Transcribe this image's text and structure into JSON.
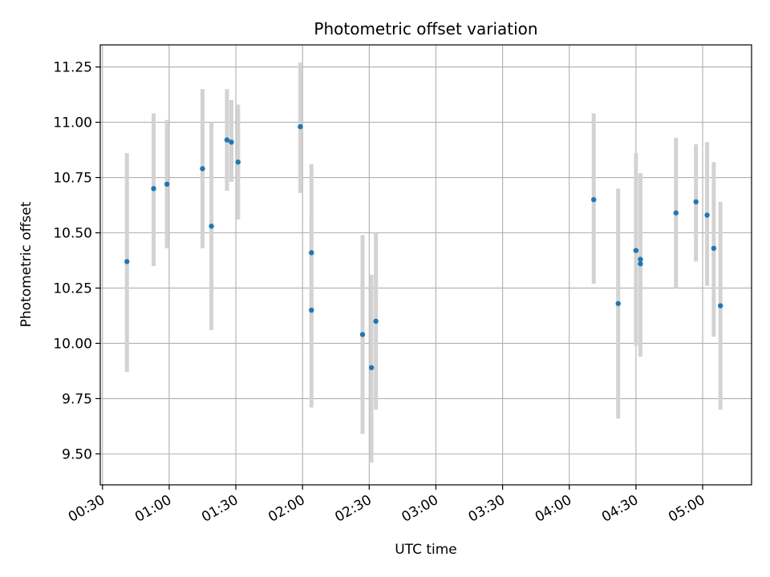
{
  "chart_data": {
    "type": "scatter",
    "title": "Photometric offset variation",
    "xlabel": "UTC time",
    "ylabel": "Photometric offset",
    "x_ticks": [
      "00:30",
      "01:00",
      "01:30",
      "02:00",
      "02:30",
      "03:00",
      "03:30",
      "04:00",
      "04:30",
      "05:00"
    ],
    "y_ticks": [
      "9.50",
      "9.75",
      "10.00",
      "10.25",
      "10.50",
      "10.75",
      "11.00",
      "11.25"
    ],
    "xlim": [
      "00:29",
      "05:22"
    ],
    "ylim": [
      9.36,
      11.35
    ],
    "grid": true,
    "colors": {
      "point": "#1f77b4",
      "errorbar": "#d3d3d3",
      "grid": "#b0b0b0"
    },
    "series": [
      {
        "points": [
          {
            "x": "00:41",
            "y": 10.37,
            "low": 9.87,
            "high": 10.86
          },
          {
            "x": "00:53",
            "y": 10.7,
            "low": 10.35,
            "high": 11.04
          },
          {
            "x": "00:59",
            "y": 10.72,
            "low": 10.43,
            "high": 11.01
          },
          {
            "x": "01:15",
            "y": 10.79,
            "low": 10.43,
            "high": 11.15
          },
          {
            "x": "01:19",
            "y": 10.53,
            "low": 10.06,
            "high": 11.0
          },
          {
            "x": "01:26",
            "y": 10.92,
            "low": 10.69,
            "high": 11.15
          },
          {
            "x": "01:28",
            "y": 10.91,
            "low": 10.73,
            "high": 11.1
          },
          {
            "x": "01:31",
            "y": 10.82,
            "low": 10.56,
            "high": 11.08
          },
          {
            "x": "01:59",
            "y": 10.98,
            "low": 10.68,
            "high": 11.27
          },
          {
            "x": "02:04",
            "y": 10.15,
            "low": 9.71,
            "high": 10.58
          },
          {
            "x": "02:04",
            "y": 10.41,
            "low": 10.02,
            "high": 10.81
          },
          {
            "x": "02:27",
            "y": 10.04,
            "low": 9.59,
            "high": 10.49
          },
          {
            "x": "02:31",
            "y": 9.89,
            "low": 9.46,
            "high": 10.31
          },
          {
            "x": "02:33",
            "y": 10.1,
            "low": 9.7,
            "high": 10.5
          },
          {
            "x": "04:11",
            "y": 10.65,
            "low": 10.27,
            "high": 11.04
          },
          {
            "x": "04:22",
            "y": 10.18,
            "low": 9.66,
            "high": 10.7
          },
          {
            "x": "04:30",
            "y": 10.42,
            "low": 9.99,
            "high": 10.86
          },
          {
            "x": "04:32",
            "y": 10.36,
            "low": 9.97,
            "high": 10.77
          },
          {
            "x": "04:32",
            "y": 10.38,
            "low": 9.94,
            "high": 10.76
          },
          {
            "x": "04:48",
            "y": 10.59,
            "low": 10.25,
            "high": 10.93
          },
          {
            "x": "04:57",
            "y": 10.64,
            "low": 10.37,
            "high": 10.9
          },
          {
            "x": "05:02",
            "y": 10.58,
            "low": 10.26,
            "high": 10.91
          },
          {
            "x": "05:05",
            "y": 10.43,
            "low": 10.03,
            "high": 10.82
          },
          {
            "x": "05:08",
            "y": 10.17,
            "low": 9.7,
            "high": 10.64
          }
        ]
      }
    ]
  }
}
